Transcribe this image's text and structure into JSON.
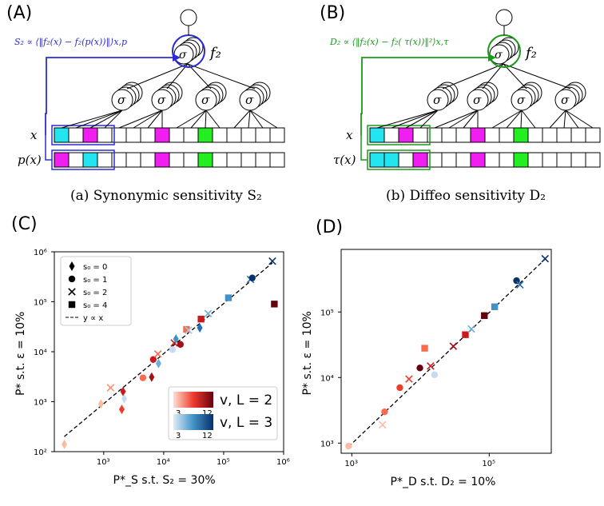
{
  "panels": {
    "A": {
      "letter": "(A)",
      "formula": "S₂ ∝ ⟨‖f₂(x) − f₂(p(x))‖⟩x,p",
      "node_label": "f₂",
      "row1_label": "x",
      "row2_label": "p(x)",
      "sigma": "σ",
      "caption": "(a) Synonymic sensitivity S₂",
      "accent_color": "#2b2bd6"
    },
    "B": {
      "letter": "(B)",
      "formula": "D₂ ∝ ⟨‖f₂(x) − f₂( τ(x))‖²⟩x,τ",
      "node_label": "f₂",
      "row1_label": "x",
      "row2_label": "τ(x)",
      "sigma": "σ",
      "caption": "(b) Diffeo sensitivity D₂",
      "accent_color": "#1a9a1a"
    },
    "C": {
      "letter": "(C)"
    },
    "D": {
      "letter": "(D)"
    }
  },
  "colors": {
    "cyan": "#22e5f0",
    "magenta": "#f01ef0",
    "green": "#22ee22"
  },
  "chart_data": [
    {
      "panel": "C",
      "type": "scatter",
      "xlabel": "P*_S s.t. S₂ = 30%",
      "ylabel": "P* s.t. ε = 10%",
      "xscale": "log",
      "yscale": "log",
      "xlim": [
        150,
        1000000
      ],
      "ylim": [
        100,
        1000000
      ],
      "x_ticks": [
        "10³",
        "10⁴",
        "10⁵",
        "10⁶"
      ],
      "y_ticks": [
        "10²",
        "10³",
        "10⁴",
        "10⁵",
        "10⁶"
      ],
      "legend": {
        "placement": "upper-left",
        "entries": [
          "s₀ = 0",
          "s₀ = 1",
          "s₀ = 2",
          "s₀ = 4",
          "y ∝ x"
        ]
      },
      "colorbars": {
        "placement": "lower-right",
        "red_label": "v, L = 2",
        "blue_label": "v, L = 3",
        "range_min": "3",
        "range_max": "12"
      },
      "reference_line": {
        "name": "y ∝ x",
        "style": "dashed",
        "from": [
          220,
          200
        ],
        "to": [
          650000,
          600000
        ]
      },
      "points": [
        {
          "x": 220,
          "y": 140,
          "marker": "diamond",
          "color": "#fcbba1"
        },
        {
          "x": 900,
          "y": 900,
          "marker": "diamond",
          "color": "#fcbba1"
        },
        {
          "x": 1300,
          "y": 1900,
          "marker": "x",
          "color": "#fc9272"
        },
        {
          "x": 2000,
          "y": 700,
          "marker": "diamond",
          "color": "#ef3b2c"
        },
        {
          "x": 2100,
          "y": 1600,
          "marker": "diamond",
          "color": "#cb181d"
        },
        {
          "x": 2200,
          "y": 1150,
          "marker": "diamond",
          "color": "#c6dbef"
        },
        {
          "x": 4500,
          "y": 3000,
          "marker": "circle",
          "color": "#fb6a4a"
        },
        {
          "x": 6300,
          "y": 3100,
          "marker": "diamond",
          "color": "#a50f15"
        },
        {
          "x": 6700,
          "y": 7000,
          "marker": "circle",
          "color": "#cb181d"
        },
        {
          "x": 8000,
          "y": 9000,
          "marker": "x",
          "color": "#fb6a4a"
        },
        {
          "x": 8200,
          "y": 5800,
          "marker": "diamond",
          "color": "#6baed6"
        },
        {
          "x": 14000,
          "y": 11000,
          "marker": "circle",
          "color": "#c6dbef"
        },
        {
          "x": 15000,
          "y": 15000,
          "marker": "x",
          "color": "#cb181d"
        },
        {
          "x": 16000,
          "y": 18000,
          "marker": "diamond",
          "color": "#4292c6"
        },
        {
          "x": 19000,
          "y": 14000,
          "marker": "circle",
          "color": "#a50f15"
        },
        {
          "x": 24000,
          "y": 28000,
          "marker": "square",
          "color": "#fb6a4a"
        },
        {
          "x": 26000,
          "y": 27000,
          "marker": "x",
          "color": "#9ecae1"
        },
        {
          "x": 40000,
          "y": 30000,
          "marker": "diamond",
          "color": "#2171b5"
        },
        {
          "x": 42000,
          "y": 45000,
          "marker": "square",
          "color": "#cb181d"
        },
        {
          "x": 55000,
          "y": 58000,
          "marker": "x",
          "color": "#6baed6"
        },
        {
          "x": 120000,
          "y": 120000,
          "marker": "square",
          "color": "#4292c6"
        },
        {
          "x": 280000,
          "y": 280000,
          "marker": "x",
          "color": "#2171b5"
        },
        {
          "x": 300000,
          "y": 300000,
          "marker": "circle",
          "color": "#08306b"
        },
        {
          "x": 650000,
          "y": 650000,
          "marker": "x",
          "color": "#08306b"
        },
        {
          "x": 700000,
          "y": 90000,
          "marker": "square",
          "color": "#67000d"
        }
      ]
    },
    {
      "panel": "D",
      "type": "scatter",
      "xlabel": "P*_D s.t. D₂ = 10%",
      "ylabel": "P* s.t. ε = 10%",
      "xscale": "log",
      "yscale": "log",
      "xlim": [
        700,
        800000
      ],
      "ylim": [
        700,
        900000
      ],
      "x_ticks": [
        "10³",
        "10⁵"
      ],
      "y_ticks": [
        "10³",
        "10⁴",
        "10⁵"
      ],
      "reference_line": {
        "name": "y ∝ x",
        "style": "dashed",
        "from": [
          900,
          880
        ],
        "to": [
          650000,
          640000
        ]
      },
      "points": [
        {
          "x": 900,
          "y": 900,
          "marker": "circle",
          "color": "#fcbba1"
        },
        {
          "x": 2800,
          "y": 1900,
          "marker": "x",
          "color": "#fcbba1"
        },
        {
          "x": 3000,
          "y": 3000,
          "marker": "circle",
          "color": "#fb6a4a"
        },
        {
          "x": 5000,
          "y": 7000,
          "marker": "circle",
          "color": "#ef3b2c"
        },
        {
          "x": 6800,
          "y": 9500,
          "marker": "x",
          "color": "#ef3b2c"
        },
        {
          "x": 9800,
          "y": 14000,
          "marker": "circle",
          "color": "#67000d"
        },
        {
          "x": 11500,
          "y": 28000,
          "marker": "square",
          "color": "#fb6a4a"
        },
        {
          "x": 14000,
          "y": 15000,
          "marker": "x",
          "color": "#cb181d"
        },
        {
          "x": 16000,
          "y": 11000,
          "marker": "circle",
          "color": "#c6dbef"
        },
        {
          "x": 30000,
          "y": 30000,
          "marker": "x",
          "color": "#a50f15"
        },
        {
          "x": 45000,
          "y": 45000,
          "marker": "square",
          "color": "#cb181d"
        },
        {
          "x": 55000,
          "y": 55000,
          "marker": "x",
          "color": "#6baed6"
        },
        {
          "x": 85000,
          "y": 88000,
          "marker": "square",
          "color": "#67000d"
        },
        {
          "x": 120000,
          "y": 120000,
          "marker": "square",
          "color": "#4292c6"
        },
        {
          "x": 250000,
          "y": 300000,
          "marker": "circle",
          "color": "#08306b"
        },
        {
          "x": 280000,
          "y": 260000,
          "marker": "x",
          "color": "#2171b5"
        },
        {
          "x": 650000,
          "y": 650000,
          "marker": "x",
          "color": "#08306b"
        }
      ]
    }
  ]
}
